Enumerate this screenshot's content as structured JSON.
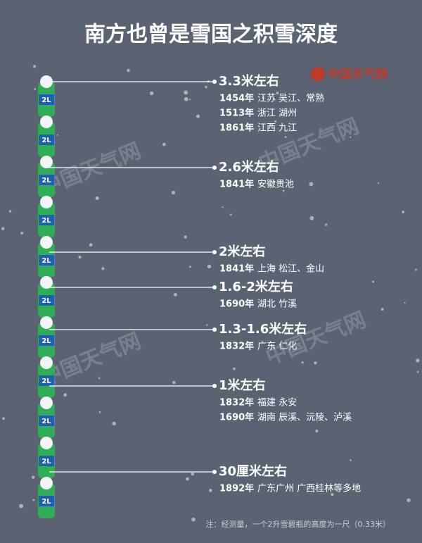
{
  "header": {
    "title": "南方也曾是雪国之积雪深度",
    "logo": "中国天气网"
  },
  "watermark": "中国天气网",
  "bottle_label": "2L",
  "levels": [
    {
      "label": "3.3米左右",
      "records": [
        {
          "year": "1454年",
          "place": "江苏 吴江、常熟"
        },
        {
          "year": "1513年",
          "place": "浙江 湖州"
        },
        {
          "year": "1861年",
          "place": "江西 九江"
        }
      ]
    },
    {
      "label": "2.6米左右",
      "records": [
        {
          "year": "1841年",
          "place": "安徽贵池"
        }
      ]
    },
    {
      "label": "2米左右",
      "records": [
        {
          "year": "1841年",
          "place": "上海  松江、金山"
        }
      ]
    },
    {
      "label": "1.6-2米左右",
      "records": [
        {
          "year": "1690年",
          "place": "湖北 竹溪"
        }
      ]
    },
    {
      "label": "1.3-1.6米左右",
      "records": [
        {
          "year": "1832年",
          "place": "广东 仁化"
        }
      ]
    },
    {
      "label": "1米左右",
      "records": [
        {
          "year": "1832年",
          "place": "福建 永安"
        },
        {
          "year": "1690年",
          "place": "湖南 辰溪、沅陵、泸溪"
        }
      ]
    },
    {
      "label": "30厘米左右",
      "records": [
        {
          "year": "1892年",
          "place": "广东广州 广西桂林等多地"
        }
      ]
    }
  ],
  "footnote": "注：经测量，一个2升雪碧瓶的高度为一尺（0.33米）"
}
